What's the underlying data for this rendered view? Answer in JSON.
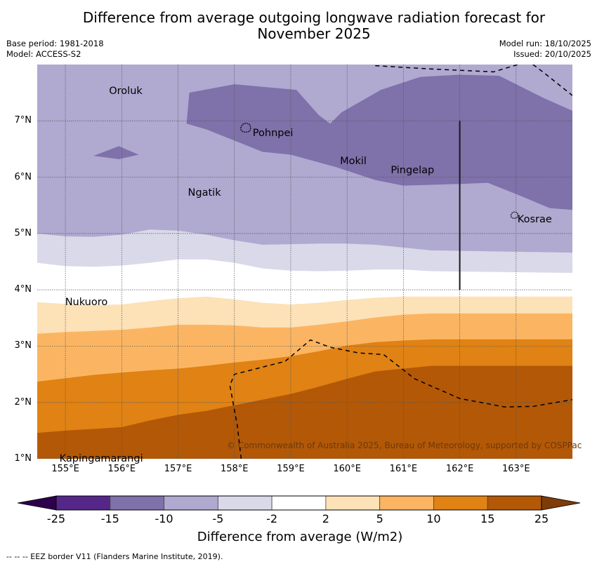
{
  "title": {
    "line1": "Difference from average outgoing longwave radiation forecast for",
    "line2": "November 2025"
  },
  "meta": {
    "base_period": "Base period: 1981-2018",
    "model": "Model: ACCESS-S2",
    "model_run": "Model run: 18/10/2025",
    "issued": "Issued: 20/10/2025"
  },
  "map": {
    "lon_range": [
      154.5,
      164.0
    ],
    "lat_range": [
      1.0,
      8.0
    ],
    "x_ticks": [
      {
        "lon": 155,
        "label": "155°E"
      },
      {
        "lon": 156,
        "label": "156°E"
      },
      {
        "lon": 157,
        "label": "157°E"
      },
      {
        "lon": 158,
        "label": "158°E"
      },
      {
        "lon": 159,
        "label": "159°E"
      },
      {
        "lon": 160,
        "label": "160°E"
      },
      {
        "lon": 161,
        "label": "161°E"
      },
      {
        "lon": 162,
        "label": "162°E"
      },
      {
        "lon": 163,
        "label": "163°E"
      }
    ],
    "y_ticks": [
      {
        "lat": 7,
        "label": "7°N"
      },
      {
        "lat": 6,
        "label": "6°N"
      },
      {
        "lat": 5,
        "label": "5°N"
      },
      {
        "lat": 4,
        "label": "4°N"
      },
      {
        "lat": 3,
        "label": "3°N"
      },
      {
        "lat": 2,
        "label": "2°N"
      },
      {
        "lat": 1,
        "label": "1°N"
      }
    ],
    "places": [
      {
        "name": "Oroluk",
        "lon": 155.75,
        "lat": 7.6
      },
      {
        "name": "Pohnpei",
        "lon": 158.3,
        "lat": 6.85
      },
      {
        "name": "Mokil",
        "lon": 159.85,
        "lat": 6.35
      },
      {
        "name": "Pingelap",
        "lon": 160.75,
        "lat": 6.2
      },
      {
        "name": "Ngatik",
        "lon": 157.15,
        "lat": 5.8
      },
      {
        "name": "Kosrae",
        "lon": 163.0,
        "lat": 5.32
      },
      {
        "name": "Nukuoro",
        "lon": 154.97,
        "lat": 3.85
      },
      {
        "name": "Kapingamarangi",
        "lon": 154.87,
        "lat": 1.08
      }
    ],
    "copyright": "© Commonwealth of Australia 2025, Bureau of Meteorology, supported by COSPPac",
    "contour_bands": [
      {
        "range": "-15 to -10",
        "color": "#7f71aa",
        "polys": [
          [
            [
              157.2,
              7.5
            ],
            [
              158.0,
              7.65
            ],
            [
              159.1,
              7.55
            ],
            [
              159.5,
              7.1
            ],
            [
              159.7,
              6.95
            ],
            [
              159.9,
              7.15
            ],
            [
              160.6,
              7.55
            ],
            [
              161.3,
              7.78
            ],
            [
              162.0,
              7.82
            ],
            [
              162.7,
              7.8
            ],
            [
              163.5,
              7.4
            ],
            [
              164.0,
              7.18
            ],
            [
              164.0,
              5.42
            ],
            [
              163.6,
              5.45
            ],
            [
              163.0,
              5.7
            ],
            [
              162.5,
              5.9
            ],
            [
              162.0,
              5.88
            ],
            [
              161.0,
              5.85
            ],
            [
              160.5,
              5.95
            ],
            [
              159.8,
              6.18
            ],
            [
              159.0,
              6.4
            ],
            [
              158.5,
              6.45
            ],
            [
              158.0,
              6.65
            ],
            [
              157.5,
              6.85
            ],
            [
              157.15,
              6.95
            ]
          ],
          [
            [
              155.5,
              6.38
            ],
            [
              155.95,
              6.55
            ],
            [
              156.3,
              6.4
            ],
            [
              155.95,
              6.32
            ]
          ]
        ]
      },
      {
        "range": "-10 to -5",
        "color": "#b0a9d0",
        "lower_lat": [
          5.0,
          4.95,
          4.94,
          4.98,
          5.07,
          5.05,
          4.98,
          4.88,
          4.8,
          4.81,
          4.82,
          4.82,
          4.8,
          4.75,
          4.7,
          4.66
        ]
      },
      {
        "range": "-5 to -2",
        "color": "#d9d9ea",
        "lower_lat": [
          4.48,
          4.42,
          4.41,
          4.43,
          4.48,
          4.54,
          4.54,
          4.48,
          4.38,
          4.34,
          4.33,
          4.34,
          4.36,
          4.36,
          4.33,
          4.3
        ]
      },
      {
        "range": "-2 to 2",
        "color": "#ffffff",
        "lower_lat": [
          3.78,
          3.75,
          3.73,
          3.74,
          3.8,
          3.85,
          3.88,
          3.83,
          3.77,
          3.74,
          3.77,
          3.82,
          3.86,
          3.88,
          3.88,
          3.88
        ]
      },
      {
        "range": "2 to 5",
        "color": "#fde1b7",
        "lower_lat": [
          3.22,
          3.25,
          3.27,
          3.29,
          3.33,
          3.38,
          3.38,
          3.37,
          3.33,
          3.33,
          3.38,
          3.44,
          3.51,
          3.56,
          3.58,
          3.58
        ]
      },
      {
        "range": "5 to 10",
        "color": "#fbb562",
        "lower_lat": [
          2.37,
          2.43,
          2.49,
          2.53,
          2.57,
          2.6,
          2.65,
          2.71,
          2.76,
          2.82,
          2.91,
          3.01,
          3.07,
          3.1,
          3.12,
          3.12
        ]
      },
      {
        "range": "10 to 15",
        "color": "#e08214",
        "lower_lat": [
          1.46,
          1.5,
          1.53,
          1.56,
          1.68,
          1.78,
          1.85,
          1.95,
          2.05,
          2.15,
          2.28,
          2.42,
          2.55,
          2.6,
          2.65,
          2.65
        ]
      },
      {
        "range": "15 to 25",
        "color": "#b35806",
        "lower_lat": [
          1.0,
          1.0,
          1.0,
          1.0,
          1.0,
          1.0,
          1.0,
          1.0,
          1.0,
          1.0,
          1.0,
          1.0,
          1.0,
          1.0,
          1.0,
          1.0
        ]
      }
    ],
    "band_lons": [
      154.5,
      155.0,
      155.5,
      156.0,
      156.5,
      157.0,
      157.5,
      158.0,
      158.5,
      159.0,
      159.5,
      160.0,
      160.5,
      161.0,
      161.5,
      164.0
    ],
    "eez_lines": [
      [
        [
          160.5,
          7.98
        ],
        [
          161.5,
          7.92
        ],
        [
          162.6,
          7.87
        ],
        [
          163.1,
          8.02
        ]
      ],
      [
        [
          163.3,
          8.0
        ],
        [
          163.5,
          7.85
        ],
        [
          164.0,
          7.45
        ]
      ],
      [
        [
          158.12,
          1.0
        ],
        [
          158.05,
          1.6
        ],
        [
          157.92,
          2.3
        ],
        [
          158.0,
          2.5
        ],
        [
          158.9,
          2.73
        ],
        [
          159.35,
          3.11
        ],
        [
          159.7,
          2.98
        ],
        [
          160.2,
          2.88
        ],
        [
          160.65,
          2.85
        ],
        [
          161.2,
          2.42
        ],
        [
          162.0,
          2.07
        ],
        [
          162.8,
          1.92
        ],
        [
          163.3,
          1.93
        ],
        [
          164.0,
          2.05
        ]
      ]
    ],
    "solid_line": [
      [
        162.0,
        7.0
      ],
      [
        162.0,
        4.0
      ]
    ]
  },
  "colorbar": {
    "title": "Difference from average (W/m2)",
    "ticks": [
      "-25",
      "-15",
      "-10",
      "-5",
      "-2",
      "2",
      "5",
      "10",
      "15",
      "25"
    ],
    "under_color": "#2d004b",
    "over_color": "#7f3b08",
    "colors": [
      "#542788",
      "#7f71aa",
      "#b0a9d0",
      "#d9d9ea",
      "#ffffff",
      "#fde1b7",
      "#fbb562",
      "#e08214",
      "#b35806"
    ]
  },
  "footnote": "--  --  -- EEZ border V11 (Flanders Marine Institute, 2019)."
}
